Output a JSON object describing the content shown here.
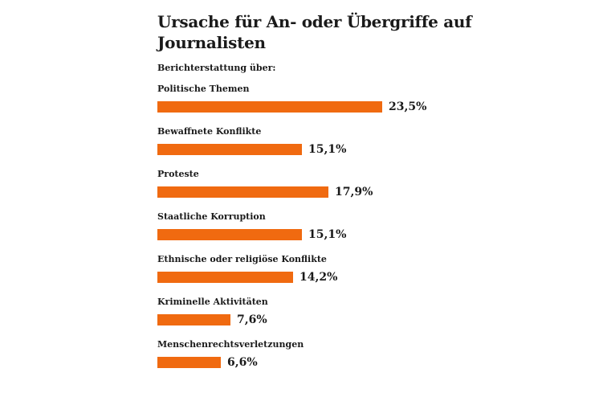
{
  "chart_data": {
    "type": "bar",
    "orientation": "horizontal",
    "title": "Ursache für An- oder Übergriffe auf Journalisten",
    "subtitle": "Berichterstattung über:",
    "categories": [
      "Politische Themen",
      "Bewaffnete Konflikte",
      "Proteste",
      "Staatliche Korruption",
      "Ethnische oder religiöse Konflikte",
      "Kriminelle Aktivitäten",
      "Menschenrechtsverletzungen"
    ],
    "values": [
      23.5,
      15.1,
      17.9,
      15.1,
      14.2,
      7.6,
      6.6
    ],
    "value_labels": [
      "23,5%",
      "15,1%",
      "17,9%",
      "15,1%",
      "14,2%",
      "7,6%",
      "6,6%"
    ],
    "xlim": [
      0,
      23.5
    ],
    "grid": false,
    "legend": "none",
    "colors": {
      "bar": "#f06a10",
      "text": "#1a1a1a"
    }
  }
}
